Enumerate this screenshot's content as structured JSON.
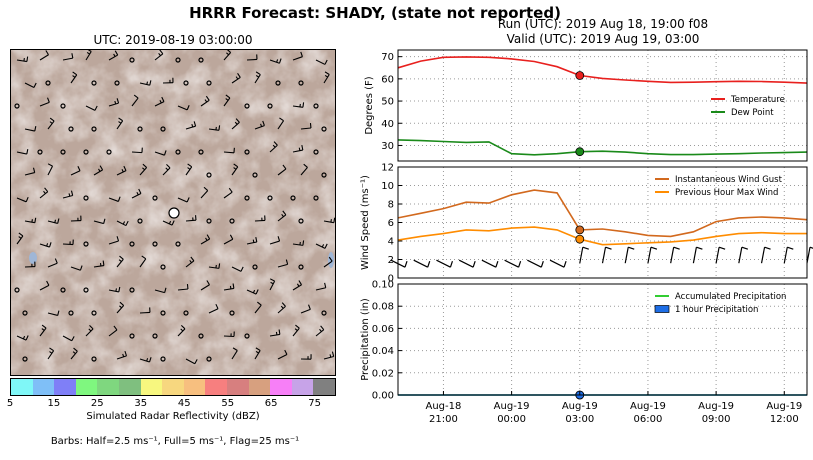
{
  "title": "HRRR Forecast: SHADY, (state not reported)",
  "run_line": "Run (UTC): 2019 Aug 18, 19:00 f08",
  "valid_line": "Valid (UTC): 2019 Aug 19, 03:00",
  "map": {
    "title": "UTC: 2019-08-19 03:00:00",
    "colorbar_label": "Simulated Radar Reflectivity (dBZ)",
    "colorbar_ticks": [
      "5",
      "15",
      "25",
      "35",
      "45",
      "55",
      "65",
      "75"
    ],
    "colorbar_colors": [
      "#7ff7f7",
      "#7fbff7",
      "#7f7ff7",
      "#7ff77f",
      "#7fd77f",
      "#7fbf7f",
      "#f7f77f",
      "#f7d77f",
      "#f7bf7f",
      "#f77f7f",
      "#d77f7f",
      "#d7a07f",
      "#f77ff7",
      "#c7a3e8",
      "#808080"
    ],
    "barb_note": "Barbs: Half=2.5 ms⁻¹, Full=5 ms⁻¹, Flag=25 ms⁻¹"
  },
  "chart_data": [
    {
      "type": "line",
      "ylabel": "Degrees (F)",
      "ylim": [
        23,
        73
      ],
      "yticks": [
        30,
        40,
        50,
        60,
        70
      ],
      "grid": true,
      "legend_position": "right",
      "x": [
        "Aug-18 19:00",
        "Aug-18 20:00",
        "Aug-18 21:00",
        "Aug-18 22:00",
        "Aug-18 23:00",
        "Aug-19 00:00",
        "Aug-19 01:00",
        "Aug-19 02:00",
        "Aug-19 03:00",
        "Aug-19 04:00",
        "Aug-19 05:00",
        "Aug-19 06:00",
        "Aug-19 07:00",
        "Aug-19 08:00",
        "Aug-19 09:00",
        "Aug-19 10:00",
        "Aug-19 11:00",
        "Aug-19 12:00",
        "Aug-19 13:00"
      ],
      "series": [
        {
          "name": "Temperature",
          "color": "#e8201e",
          "values": [
            65,
            68,
            69.7,
            69.9,
            69.7,
            69.0,
            67.8,
            65.5,
            61.5,
            60.2,
            59.5,
            58.9,
            58.4,
            58.5,
            58.7,
            58.9,
            58.8,
            58.5,
            58.1
          ]
        },
        {
          "name": "Dew Point",
          "color": "#1a8a1a",
          "values": [
            32.5,
            32.2,
            31.8,
            31.4,
            31.6,
            26.3,
            25.8,
            26.3,
            27.2,
            27.4,
            27.0,
            26.3,
            25.9,
            25.9,
            26.1,
            26.3,
            26.6,
            26.8,
            27.0
          ]
        }
      ],
      "current_index": 8
    },
    {
      "type": "line",
      "ylabel": "Wind Speed (ms⁻¹)",
      "ylim": [
        0,
        12
      ],
      "yticks": [
        0,
        2,
        4,
        6,
        8,
        10,
        12
      ],
      "grid": true,
      "legend_position": "top-right",
      "x": [
        "Aug-18 19:00",
        "Aug-18 20:00",
        "Aug-18 21:00",
        "Aug-18 22:00",
        "Aug-18 23:00",
        "Aug-19 00:00",
        "Aug-19 01:00",
        "Aug-19 02:00",
        "Aug-19 03:00",
        "Aug-19 04:00",
        "Aug-19 05:00",
        "Aug-19 06:00",
        "Aug-19 07:00",
        "Aug-19 08:00",
        "Aug-19 09:00",
        "Aug-19 10:00",
        "Aug-19 11:00",
        "Aug-19 12:00",
        "Aug-19 13:00"
      ],
      "series": [
        {
          "name": "Instantaneous Wind Gust",
          "color": "#d2691e",
          "values": [
            6.5,
            7.0,
            7.5,
            8.2,
            8.1,
            9.0,
            9.5,
            9.2,
            5.2,
            5.3,
            5.0,
            4.6,
            4.5,
            5.0,
            6.1,
            6.5,
            6.6,
            6.5,
            6.3
          ]
        },
        {
          "name": "Previous Hour Max Wind",
          "color": "#ff8c00",
          "values": [
            4.1,
            4.5,
            4.8,
            5.2,
            5.1,
            5.4,
            5.5,
            5.2,
            4.2,
            3.6,
            3.7,
            3.8,
            3.9,
            4.1,
            4.5,
            4.8,
            4.9,
            4.8,
            4.8
          ]
        }
      ],
      "current_index": 8
    },
    {
      "type": "line",
      "ylabel": "Precipitation (in)",
      "ylim": [
        0,
        0.1
      ],
      "yticks": [
        "0.00",
        "0.02",
        "0.04",
        "0.06",
        "0.08",
        "0.10"
      ],
      "grid": true,
      "legend_position": "top-right",
      "x_tick_labels": [
        [
          "Aug-18",
          "21:00"
        ],
        [
          "Aug-19",
          "00:00"
        ],
        [
          "Aug-19",
          "03:00"
        ],
        [
          "Aug-19",
          "06:00"
        ],
        [
          "Aug-19",
          "09:00"
        ],
        [
          "Aug-19",
          "12:00"
        ]
      ],
      "x_tick_hours": [
        2,
        5,
        8,
        11,
        14,
        17
      ],
      "series": [
        {
          "name": "Accumulated Precipitation",
          "color": "#32cd32",
          "values": [
            0,
            0,
            0,
            0,
            0,
            0,
            0,
            0,
            0,
            0,
            0,
            0,
            0,
            0,
            0,
            0,
            0,
            0,
            0
          ]
        },
        {
          "name": "1 hour Precipitation",
          "color": "#1e6ee6",
          "values": [
            0,
            0,
            0,
            0,
            0,
            0,
            0,
            0,
            0,
            0,
            0,
            0,
            0,
            0,
            0,
            0,
            0,
            0,
            0
          ]
        }
      ],
      "current_index": 8
    }
  ]
}
